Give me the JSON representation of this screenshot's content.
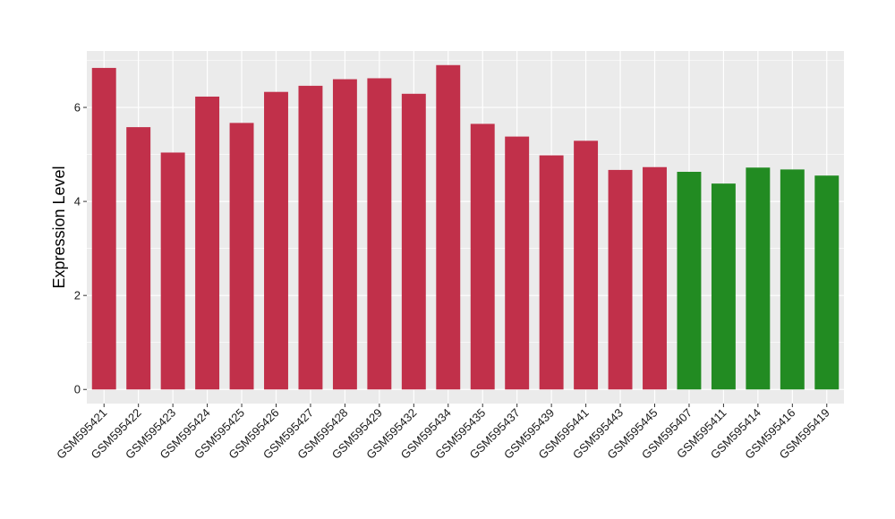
{
  "chart_data": {
    "type": "bar",
    "ylabel": "Expression Level",
    "xlabel": "",
    "ylim": [
      -0.3,
      7.2
    ],
    "yticks": [
      0,
      2,
      4,
      6
    ],
    "grid": true,
    "categories": [
      "GSM595421",
      "GSM595422",
      "GSM595423",
      "GSM595424",
      "GSM595425",
      "GSM595426",
      "GSM595427",
      "GSM595428",
      "GSM595429",
      "GSM595432",
      "GSM595434",
      "GSM595435",
      "GSM595437",
      "GSM595439",
      "GSM595441",
      "GSM595443",
      "GSM595445",
      "GSM595407",
      "GSM595411",
      "GSM595414",
      "GSM595416",
      "GSM595419"
    ],
    "values": [
      6.84,
      5.58,
      5.04,
      6.23,
      5.67,
      6.33,
      6.46,
      6.6,
      6.62,
      6.29,
      6.9,
      5.65,
      5.38,
      4.98,
      5.29,
      4.67,
      4.73,
      4.63,
      4.38,
      4.72,
      4.68,
      4.55
    ],
    "bar_colors": [
      "#C1304A",
      "#C1304A",
      "#C1304A",
      "#C1304A",
      "#C1304A",
      "#C1304A",
      "#C1304A",
      "#C1304A",
      "#C1304A",
      "#C1304A",
      "#C1304A",
      "#C1304A",
      "#C1304A",
      "#C1304A",
      "#C1304A",
      "#C1304A",
      "#C1304A",
      "#228B22",
      "#228B22",
      "#228B22",
      "#228B22",
      "#228B22"
    ]
  },
  "colors": {
    "panel_background": "#EBEBEB",
    "grid_major": "#FFFFFF",
    "group_a": "#C1304A",
    "group_b": "#228B22"
  }
}
